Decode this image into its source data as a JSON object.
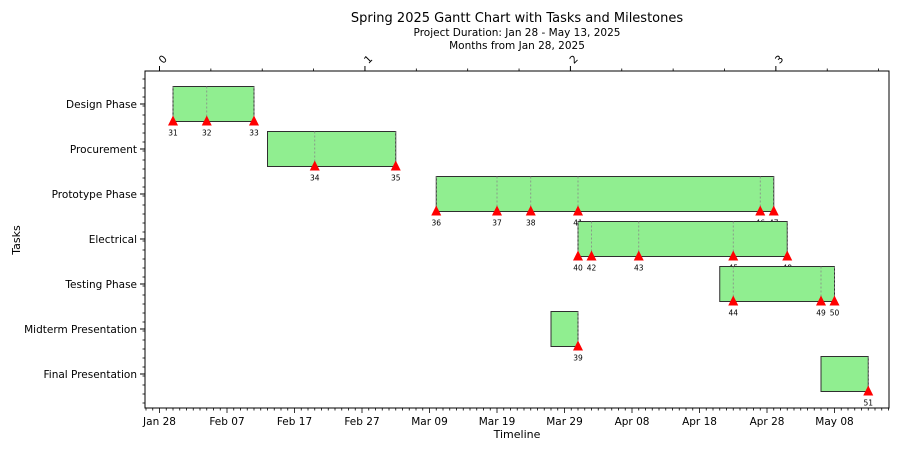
{
  "chart_data": {
    "type": "gantt",
    "title": "Spring 2025 Gantt Chart with Tasks and Milestones",
    "subtitle": "Project Duration: Jan 28 - May 13, 2025",
    "top_axis_label": "Months from Jan 28, 2025",
    "top_ticks": [
      "0",
      "1",
      "2",
      "3"
    ],
    "xlabel": "Timeline",
    "ylabel": "Tasks",
    "x_ticks": [
      "Jan 28",
      "Feb 07",
      "Feb 17",
      "Feb 27",
      "Mar 09",
      "Mar 19",
      "Mar 29",
      "Apr 08",
      "Apr 18",
      "Apr 28",
      "May 08"
    ],
    "colors": {
      "bar_fill": "#90ee90",
      "bar_edge": "#2f2f2f",
      "milestone": "#ff0000"
    },
    "tasks": [
      {
        "name": "Design Phase",
        "start": "2025-01-30",
        "end": "2025-02-11",
        "milestones": [
          {
            "id": "31",
            "date": "2025-01-30"
          },
          {
            "id": "32",
            "date": "2025-02-04"
          },
          {
            "id": "33",
            "date": "2025-02-11"
          }
        ]
      },
      {
        "name": "Procurement",
        "start": "2025-02-13",
        "end": "2025-03-04",
        "milestones": [
          {
            "id": "34",
            "date": "2025-02-20"
          },
          {
            "id": "35",
            "date": "2025-03-04"
          }
        ]
      },
      {
        "name": "Prototype Phase",
        "start": "2025-03-10",
        "end": "2025-04-29",
        "milestones": [
          {
            "id": "36",
            "date": "2025-03-10"
          },
          {
            "id": "37",
            "date": "2025-03-19"
          },
          {
            "id": "38",
            "date": "2025-03-24"
          },
          {
            "id": "41",
            "date": "2025-03-31"
          },
          {
            "id": "46",
            "date": "2025-04-27"
          },
          {
            "id": "47",
            "date": "2025-04-29"
          }
        ]
      },
      {
        "name": "Electrical",
        "start": "2025-03-31",
        "end": "2025-05-01",
        "milestones": [
          {
            "id": "40",
            "date": "2025-03-31"
          },
          {
            "id": "42",
            "date": "2025-04-02"
          },
          {
            "id": "43",
            "date": "2025-04-09"
          },
          {
            "id": "45",
            "date": "2025-04-23"
          },
          {
            "id": "48",
            "date": "2025-05-01"
          }
        ]
      },
      {
        "name": "Testing Phase",
        "start": "2025-04-21",
        "end": "2025-05-08",
        "milestones": [
          {
            "id": "44",
            "date": "2025-04-23"
          },
          {
            "id": "49",
            "date": "2025-05-06"
          },
          {
            "id": "50",
            "date": "2025-05-08"
          }
        ]
      },
      {
        "name": "Midterm Presentation",
        "start": "2025-03-27",
        "end": "2025-03-31",
        "milestones": [
          {
            "id": "39",
            "date": "2025-03-31"
          }
        ]
      },
      {
        "name": "Final Presentation",
        "start": "2025-05-06",
        "end": "2025-05-13",
        "milestones": [
          {
            "id": "51",
            "date": "2025-05-13"
          }
        ]
      }
    ]
  }
}
